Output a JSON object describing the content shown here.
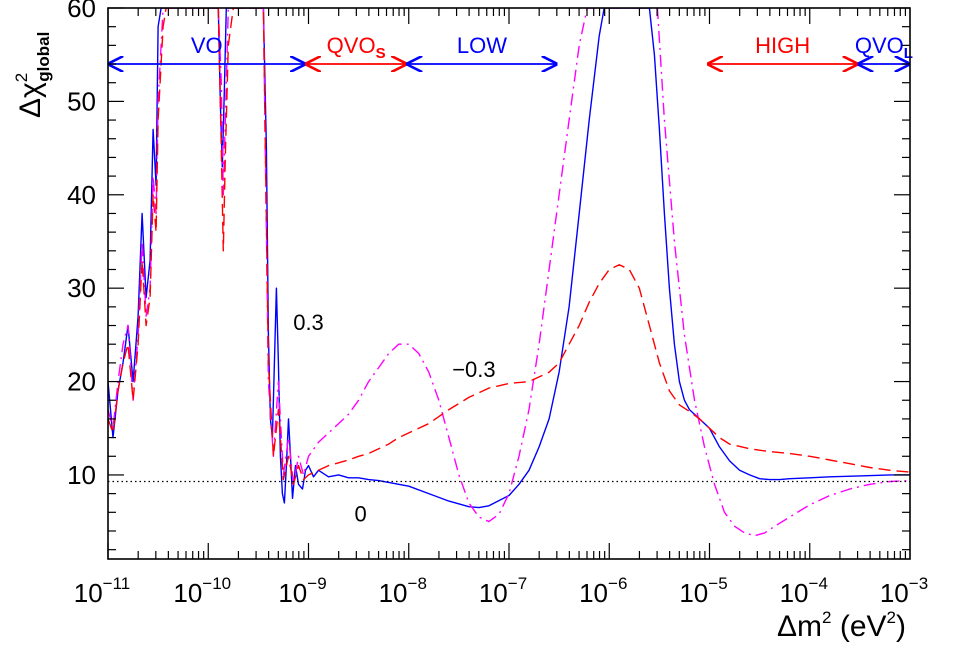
{
  "chart_data": {
    "type": "line",
    "title": "",
    "xlabel": "Δm² (eV²)",
    "ylabel": "Δχ²global",
    "ylabel_parts": {
      "main": "Δχ",
      "sup": "2",
      "sub": "global"
    },
    "xlabel_parts": {
      "pre": "Δm",
      "sup1": "2",
      "mid": " (eV",
      "sup2": "2",
      "post": ")"
    },
    "x_scale": "log",
    "x_log_range": [
      -11,
      -3
    ],
    "xlim": [
      1e-11,
      0.001
    ],
    "ylim": [
      1,
      60
    ],
    "x_ticks": [
      {
        "base": "10",
        "exp": "−11",
        "log": -11
      },
      {
        "base": "10",
        "exp": "−10",
        "log": -10
      },
      {
        "base": "10",
        "exp": "−9",
        "log": -9
      },
      {
        "base": "10",
        "exp": "−8",
        "log": -8
      },
      {
        "base": "10",
        "exp": "−7",
        "log": -7
      },
      {
        "base": "10",
        "exp": "−6",
        "log": -6
      },
      {
        "base": "10",
        "exp": "−5",
        "log": -5
      },
      {
        "base": "10",
        "exp": "−4",
        "log": -4
      },
      {
        "base": "10",
        "exp": "−3",
        "log": -3
      }
    ],
    "y_ticks": [
      10,
      20,
      30,
      40,
      50,
      60
    ],
    "grid": false,
    "reference_line": {
      "y": 9.3,
      "style": "dotted",
      "color": "#000000"
    },
    "regions": [
      {
        "label": "VO",
        "sub": "",
        "color": "#0000ff",
        "from_log": -11,
        "to_log": -9.03
      },
      {
        "label": "QVO",
        "sub": "S",
        "color": "#ff0000",
        "from_log": -9.03,
        "to_log": -8.02
      },
      {
        "label": "LOW",
        "sub": "",
        "color": "#0000ff",
        "from_log": -8.02,
        "to_log": -6.52
      },
      {
        "label": "HIGH",
        "sub": "",
        "color": "#ff0000",
        "from_log": -5.02,
        "to_log": -3.52
      },
      {
        "label": "QVO",
        "sub": "L",
        "color": "#0000ff",
        "from_log": -3.52,
        "to_log": -3.0
      }
    ],
    "region_arrow_y": 54,
    "series": [
      {
        "label": "0",
        "color": "#0000ff",
        "style": "solid",
        "points": [
          [
            -11.0,
            20
          ],
          [
            -10.95,
            14
          ],
          [
            -10.9,
            19
          ],
          [
            -10.85,
            22
          ],
          [
            -10.8,
            26
          ],
          [
            -10.75,
            20
          ],
          [
            -10.7,
            27
          ],
          [
            -10.66,
            38
          ],
          [
            -10.62,
            29
          ],
          [
            -10.58,
            33
          ],
          [
            -10.55,
            47
          ],
          [
            -10.52,
            41
          ],
          [
            -10.5,
            58
          ],
          [
            -10.47,
            60
          ],
          [
            -9.9,
            60
          ],
          [
            -9.88,
            50
          ],
          [
            -9.86,
            43
          ],
          [
            -9.84,
            51
          ],
          [
            -9.82,
            60
          ],
          [
            -9.45,
            60
          ],
          [
            -9.42,
            45
          ],
          [
            -9.4,
            25
          ],
          [
            -9.38,
            16
          ],
          [
            -9.36,
            14
          ],
          [
            -9.34,
            22
          ],
          [
            -9.32,
            30
          ],
          [
            -9.3,
            22
          ],
          [
            -9.28,
            12
          ],
          [
            -9.26,
            8
          ],
          [
            -9.24,
            7
          ],
          [
            -9.22,
            11
          ],
          [
            -9.2,
            16
          ],
          [
            -9.18,
            12
          ],
          [
            -9.16,
            7.5
          ],
          [
            -9.13,
            11
          ],
          [
            -9.1,
            9
          ],
          [
            -9.06,
            8.5
          ],
          [
            -9.03,
            10.5
          ],
          [
            -9.0,
            11
          ],
          [
            -8.95,
            9.8
          ],
          [
            -8.9,
            10.5
          ],
          [
            -8.8,
            9.8
          ],
          [
            -8.7,
            10
          ],
          [
            -8.6,
            9.7
          ],
          [
            -8.5,
            9.7
          ],
          [
            -8.4,
            9.5
          ],
          [
            -8.3,
            9.4
          ],
          [
            -8.2,
            9.2
          ],
          [
            -8.1,
            9
          ],
          [
            -8.0,
            8.8
          ],
          [
            -7.8,
            8
          ],
          [
            -7.6,
            7.2
          ],
          [
            -7.4,
            6.6
          ],
          [
            -7.3,
            6.5
          ],
          [
            -7.2,
            6.7
          ],
          [
            -7.0,
            7.8
          ],
          [
            -6.9,
            9
          ],
          [
            -6.8,
            10.5
          ],
          [
            -6.7,
            13
          ],
          [
            -6.6,
            16
          ],
          [
            -6.5,
            21
          ],
          [
            -6.4,
            28
          ],
          [
            -6.3,
            38
          ],
          [
            -6.2,
            48
          ],
          [
            -6.1,
            57
          ],
          [
            -6.05,
            60
          ],
          [
            -5.6,
            60
          ],
          [
            -5.55,
            55
          ],
          [
            -5.5,
            47
          ],
          [
            -5.45,
            38
          ],
          [
            -5.4,
            30
          ],
          [
            -5.35,
            24
          ],
          [
            -5.3,
            20
          ],
          [
            -5.25,
            18
          ],
          [
            -5.2,
            17
          ],
          [
            -5.1,
            16
          ],
          [
            -5.0,
            15
          ],
          [
            -4.9,
            13
          ],
          [
            -4.8,
            11.5
          ],
          [
            -4.7,
            10.5
          ],
          [
            -4.6,
            10
          ],
          [
            -4.5,
            9.6
          ],
          [
            -4.4,
            9.5
          ],
          [
            -4.3,
            9.5
          ],
          [
            -4.2,
            9.6
          ],
          [
            -4.0,
            9.7
          ],
          [
            -3.8,
            9.8
          ],
          [
            -3.5,
            9.9
          ],
          [
            -3.2,
            10
          ],
          [
            -3.0,
            10
          ]
        ]
      },
      {
        "label": "0.3",
        "color": "#ff00ff",
        "style": "dashdot",
        "points": [
          [
            -11.0,
            17
          ],
          [
            -10.95,
            15
          ],
          [
            -10.9,
            20
          ],
          [
            -10.85,
            24
          ],
          [
            -10.8,
            26
          ],
          [
            -10.75,
            18
          ],
          [
            -10.7,
            25
          ],
          [
            -10.66,
            35
          ],
          [
            -10.62,
            27
          ],
          [
            -10.58,
            30
          ],
          [
            -10.55,
            42
          ],
          [
            -10.52,
            38
          ],
          [
            -10.5,
            50
          ],
          [
            -10.45,
            60
          ],
          [
            -9.9,
            60
          ],
          [
            -9.87,
            52
          ],
          [
            -9.85,
            40
          ],
          [
            -9.83,
            48
          ],
          [
            -9.8,
            60
          ],
          [
            -9.45,
            60
          ],
          [
            -9.4,
            20
          ],
          [
            -9.35,
            12
          ],
          [
            -9.3,
            20
          ],
          [
            -9.25,
            10
          ],
          [
            -9.2,
            14
          ],
          [
            -9.15,
            9
          ],
          [
            -9.1,
            12
          ],
          [
            -9.05,
            10
          ],
          [
            -9.0,
            12
          ],
          [
            -8.9,
            13.5
          ],
          [
            -8.8,
            14.5
          ],
          [
            -8.7,
            15.5
          ],
          [
            -8.6,
            16.5
          ],
          [
            -8.5,
            18
          ],
          [
            -8.4,
            20
          ],
          [
            -8.3,
            21.5
          ],
          [
            -8.2,
            23
          ],
          [
            -8.1,
            24
          ],
          [
            -8.0,
            24
          ],
          [
            -7.9,
            23
          ],
          [
            -7.8,
            21
          ],
          [
            -7.7,
            18
          ],
          [
            -7.6,
            14
          ],
          [
            -7.5,
            10
          ],
          [
            -7.4,
            7
          ],
          [
            -7.3,
            5.5
          ],
          [
            -7.2,
            5
          ],
          [
            -7.1,
            5.8
          ],
          [
            -7.0,
            8
          ],
          [
            -6.9,
            12
          ],
          [
            -6.8,
            17
          ],
          [
            -6.7,
            24
          ],
          [
            -6.6,
            32
          ],
          [
            -6.5,
            40
          ],
          [
            -6.4,
            48
          ],
          [
            -6.3,
            56
          ],
          [
            -6.22,
            60
          ],
          [
            -5.52,
            60
          ],
          [
            -5.45,
            48
          ],
          [
            -5.35,
            35
          ],
          [
            -5.25,
            25
          ],
          [
            -5.15,
            18
          ],
          [
            -5.05,
            13
          ],
          [
            -4.95,
            9
          ],
          [
            -4.85,
            6
          ],
          [
            -4.75,
            4.5
          ],
          [
            -4.65,
            3.8
          ],
          [
            -4.55,
            3.5
          ],
          [
            -4.45,
            3.8
          ],
          [
            -4.35,
            4.5
          ],
          [
            -4.2,
            5.5
          ],
          [
            -4.0,
            6.8
          ],
          [
            -3.8,
            7.8
          ],
          [
            -3.6,
            8.5
          ],
          [
            -3.4,
            9
          ],
          [
            -3.2,
            9.3
          ],
          [
            -3.0,
            9.4
          ]
        ]
      },
      {
        "label": "−0.3",
        "color": "#ff0000",
        "style": "dashed",
        "points": [
          [
            -11.0,
            16
          ],
          [
            -10.95,
            14.5
          ],
          [
            -10.9,
            19
          ],
          [
            -10.85,
            22
          ],
          [
            -10.8,
            24
          ],
          [
            -10.75,
            18
          ],
          [
            -10.7,
            24
          ],
          [
            -10.66,
            33
          ],
          [
            -10.62,
            26
          ],
          [
            -10.58,
            29
          ],
          [
            -10.55,
            40
          ],
          [
            -10.52,
            36
          ],
          [
            -10.5,
            48
          ],
          [
            -10.45,
            58
          ],
          [
            -10.42,
            60
          ],
          [
            -9.9,
            60
          ],
          [
            -9.87,
            45
          ],
          [
            -9.85,
            34
          ],
          [
            -9.83,
            44
          ],
          [
            -9.8,
            56
          ],
          [
            -9.75,
            60
          ],
          [
            -9.45,
            60
          ],
          [
            -9.4,
            22
          ],
          [
            -9.35,
            12
          ],
          [
            -9.3,
            17
          ],
          [
            -9.25,
            9.5
          ],
          [
            -9.2,
            12
          ],
          [
            -9.15,
            9
          ],
          [
            -9.1,
            11
          ],
          [
            -9.05,
            9.5
          ],
          [
            -9.0,
            10
          ],
          [
            -8.9,
            10.5
          ],
          [
            -8.8,
            11
          ],
          [
            -8.7,
            11.3
          ],
          [
            -8.6,
            11.6
          ],
          [
            -8.5,
            12
          ],
          [
            -8.4,
            12.3
          ],
          [
            -8.3,
            12.8
          ],
          [
            -8.2,
            13.3
          ],
          [
            -8.1,
            14
          ],
          [
            -8.0,
            14.5
          ],
          [
            -7.8,
            15.5
          ],
          [
            -7.6,
            17
          ],
          [
            -7.4,
            18.3
          ],
          [
            -7.2,
            19.3
          ],
          [
            -7.0,
            19.8
          ],
          [
            -6.8,
            20
          ],
          [
            -6.6,
            21
          ],
          [
            -6.5,
            22
          ],
          [
            -6.4,
            24
          ],
          [
            -6.3,
            26
          ],
          [
            -6.2,
            28.5
          ],
          [
            -6.1,
            30.5
          ],
          [
            -6.0,
            32
          ],
          [
            -5.9,
            32.5
          ],
          [
            -5.8,
            32
          ],
          [
            -5.7,
            30
          ],
          [
            -5.6,
            26
          ],
          [
            -5.5,
            22
          ],
          [
            -5.4,
            19
          ],
          [
            -5.3,
            17.5
          ],
          [
            -5.2,
            16.8
          ],
          [
            -5.1,
            16
          ],
          [
            -5.0,
            15
          ],
          [
            -4.9,
            14
          ],
          [
            -4.8,
            13.3
          ],
          [
            -4.6,
            12.8
          ],
          [
            -4.4,
            12.5
          ],
          [
            -4.2,
            12.3
          ],
          [
            -4.0,
            12
          ],
          [
            -3.8,
            11.6
          ],
          [
            -3.6,
            11.2
          ],
          [
            -3.4,
            10.8
          ],
          [
            -3.2,
            10.5
          ],
          [
            -3.0,
            10.3
          ]
        ]
      }
    ],
    "curve_labels": [
      {
        "text": "0.3",
        "at_log": -9.0,
        "at_y": 25.5
      },
      {
        "text": "−0.3",
        "at_log": -7.35,
        "at_y": 20.5
      },
      {
        "text": "0",
        "at_log": -8.48,
        "at_y": 5
      }
    ]
  }
}
